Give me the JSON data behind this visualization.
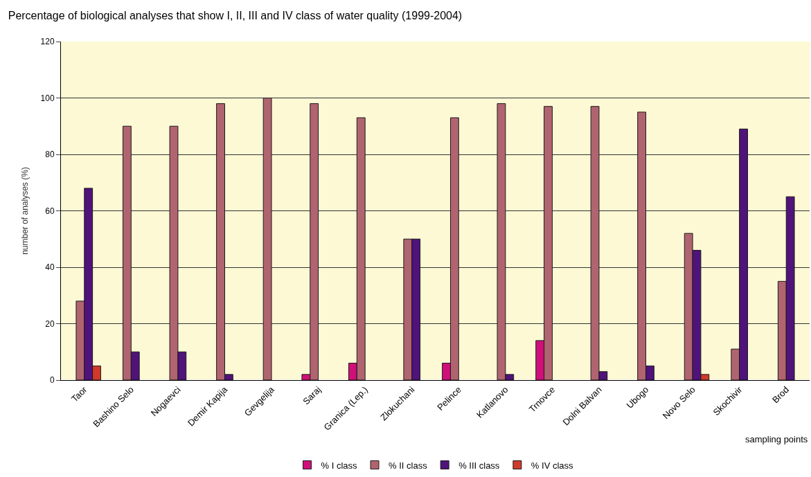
{
  "chart_data": {
    "type": "bar",
    "title": "Percentage of biological analyses that show I, II, III and IV class of water quality (1999-2004)",
    "xlabel": "sampling points",
    "ylabel": "number of analyses (%)",
    "categories": [
      "Taor",
      "Bashino Selo",
      "Nogaevci",
      "Demir Kapija",
      "Gevgelija",
      "Saraj",
      "Granica (Lep.)",
      "Zlokuchani",
      "Pelince",
      "Katlanovo",
      "Trnovce",
      "Dolni Balvan",
      "Ubogo",
      "Novo Selo",
      "Skochivir",
      "Brod"
    ],
    "series": [
      {
        "name": "% I class",
        "color": "#d0107a",
        "values": [
          null,
          null,
          null,
          null,
          null,
          2,
          6,
          null,
          6,
          null,
          14,
          null,
          null,
          null,
          null,
          null
        ]
      },
      {
        "name": "% II class",
        "color": "#b06470",
        "values": [
          28,
          90,
          90,
          98,
          100,
          98,
          93,
          50,
          93,
          98,
          97,
          97,
          95,
          52,
          11,
          35
        ]
      },
      {
        "name": "% III class",
        "color": "#4f137a",
        "values": [
          68,
          10,
          10,
          2,
          null,
          null,
          null,
          50,
          null,
          2,
          null,
          3,
          5,
          46,
          89,
          65
        ]
      },
      {
        "name": "% IV class",
        "color": "#d03a2a",
        "values": [
          5,
          null,
          null,
          null,
          null,
          null,
          null,
          null,
          null,
          null,
          null,
          null,
          null,
          2,
          null,
          null
        ]
      }
    ],
    "ylim": [
      0,
      120
    ],
    "yticks": [
      0,
      20,
      40,
      60,
      80,
      100,
      120
    ],
    "grid": "y",
    "legend": "bottom"
  }
}
